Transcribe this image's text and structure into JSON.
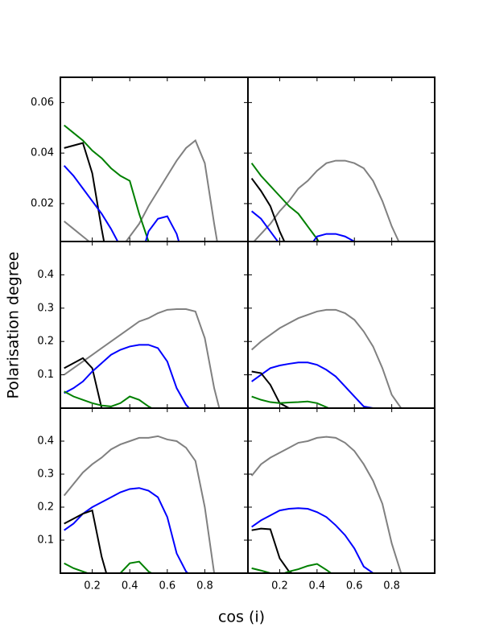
{
  "xlabel": "cos (i)",
  "ylabel": "Polarisation degree",
  "chart_data": [
    {
      "type": "line",
      "xtick_labels": false,
      "ytick_labels": true,
      "x": [
        0.05,
        0.1,
        0.15,
        0.2,
        0.25,
        0.3,
        0.35,
        0.4,
        0.45,
        0.5,
        0.55,
        0.6,
        0.65,
        0.7,
        0.75,
        0.8,
        0.85,
        0.9
      ],
      "xlim": [
        0.03,
        1.03
      ],
      "ylim": [
        0.005,
        0.07
      ],
      "xticks": [
        0.2,
        0.4,
        0.6,
        0.8
      ],
      "yticks": [
        0.02,
        0.04,
        0.06
      ],
      "series": [
        {
          "color": "#808080",
          "values": [
            0.013,
            0.01,
            0.007,
            0.004,
            0.001,
            -0.002,
            0.002,
            0.007,
            0.012,
            0.019,
            0.025,
            0.031,
            0.037,
            0.042,
            0.045,
            0.036,
            0.012,
            -0.01
          ]
        },
        {
          "color": "#008000",
          "values": [
            0.051,
            0.048,
            0.045,
            0.041,
            0.038,
            0.034,
            0.031,
            0.029,
            0.016,
            0.005,
            -0.005,
            null,
            null,
            null,
            null,
            null,
            null,
            null
          ]
        },
        {
          "color": "#000000",
          "values": [
            0.042,
            0.043,
            0.044,
            0.032,
            0.01,
            -0.01,
            null,
            null,
            null,
            null,
            null,
            null,
            null,
            null,
            null,
            null,
            null,
            null
          ]
        },
        {
          "color": "#0000ff",
          "values": [
            0.035,
            0.031,
            0.026,
            0.021,
            0.016,
            0.01,
            0.003,
            -0.004,
            -0.004,
            0.009,
            0.014,
            0.015,
            0.008,
            -0.005,
            null,
            null,
            null,
            null
          ]
        }
      ]
    },
    {
      "type": "line",
      "xtick_labels": false,
      "ytick_labels": false,
      "x": [
        0.05,
        0.1,
        0.15,
        0.2,
        0.25,
        0.3,
        0.35,
        0.4,
        0.45,
        0.5,
        0.55,
        0.6,
        0.65,
        0.7,
        0.75,
        0.8,
        0.85,
        0.9
      ],
      "xlim": [
        0.03,
        1.03
      ],
      "ylim": [
        0.005,
        0.07
      ],
      "xticks": [
        0.2,
        0.4,
        0.6,
        0.8
      ],
      "yticks": [
        0.02,
        0.04,
        0.06
      ],
      "series": [
        {
          "color": "#808080",
          "values": [
            0.004,
            0.008,
            0.012,
            0.017,
            0.021,
            0.026,
            0.029,
            0.033,
            0.036,
            0.037,
            0.037,
            0.036,
            0.034,
            0.029,
            0.021,
            0.011,
            0.003,
            -0.005
          ]
        },
        {
          "color": "#008000",
          "values": [
            0.036,
            0.031,
            0.027,
            0.023,
            0.019,
            0.016,
            0.011,
            0.006,
            0.0,
            null,
            null,
            null,
            null,
            null,
            null,
            null,
            null,
            null
          ]
        },
        {
          "color": "#000000",
          "values": [
            0.03,
            0.025,
            0.019,
            0.009,
            0.001,
            null,
            null,
            null,
            null,
            null,
            null,
            null,
            null,
            null,
            null,
            null,
            null,
            null
          ]
        },
        {
          "color": "#0000ff",
          "values": [
            0.017,
            0.014,
            0.009,
            0.004,
            -0.001,
            -0.004,
            0.002,
            0.007,
            0.008,
            0.008,
            0.007,
            0.005,
            0.003,
            null,
            null,
            null,
            null,
            null
          ]
        }
      ]
    },
    {
      "type": "line",
      "xtick_labels": false,
      "ytick_labels": true,
      "x": [
        0.05,
        0.1,
        0.15,
        0.2,
        0.25,
        0.3,
        0.35,
        0.4,
        0.45,
        0.5,
        0.55,
        0.6,
        0.65,
        0.7,
        0.75,
        0.8,
        0.85,
        0.9
      ],
      "xlim": [
        0.03,
        1.03
      ],
      "ylim": [
        0,
        0.5
      ],
      "xticks": [
        0.2,
        0.4,
        0.6,
        0.8
      ],
      "yticks": [
        0.1,
        0.2,
        0.3,
        0.4
      ],
      "series": [
        {
          "color": "#808080",
          "values": [
            0.1,
            0.12,
            0.14,
            0.16,
            0.18,
            0.2,
            0.22,
            0.24,
            0.26,
            0.27,
            0.285,
            0.295,
            0.297,
            0.297,
            0.29,
            0.21,
            0.06,
            -0.05
          ]
        },
        {
          "color": "#000000",
          "values": [
            0.12,
            0.135,
            0.15,
            0.12,
            0.0,
            null,
            null,
            null,
            null,
            null,
            null,
            null,
            null,
            null,
            null,
            null,
            null,
            null
          ]
        },
        {
          "color": "#0000ff",
          "values": [
            0.045,
            0.06,
            0.08,
            0.11,
            0.135,
            0.16,
            0.175,
            0.185,
            0.19,
            0.19,
            0.18,
            0.14,
            0.06,
            0.01,
            -0.02,
            null,
            null,
            null
          ]
        },
        {
          "color": "#008000",
          "values": [
            0.05,
            0.035,
            0.025,
            0.015,
            0.008,
            0.005,
            0.015,
            0.035,
            0.025,
            0.005,
            -0.01,
            null,
            null,
            null,
            null,
            null,
            null,
            null
          ]
        }
      ]
    },
    {
      "type": "line",
      "xtick_labels": false,
      "ytick_labels": false,
      "x": [
        0.05,
        0.1,
        0.15,
        0.2,
        0.25,
        0.3,
        0.35,
        0.4,
        0.45,
        0.5,
        0.55,
        0.6,
        0.65,
        0.7,
        0.75,
        0.8,
        0.85,
        0.9
      ],
      "xlim": [
        0.03,
        1.03
      ],
      "ylim": [
        0,
        0.5
      ],
      "xticks": [
        0.2,
        0.4,
        0.6,
        0.8
      ],
      "yticks": [
        0.1,
        0.2,
        0.3,
        0.4
      ],
      "series": [
        {
          "color": "#808080",
          "values": [
            0.175,
            0.2,
            0.22,
            0.24,
            0.255,
            0.27,
            0.28,
            0.29,
            0.295,
            0.295,
            0.285,
            0.265,
            0.23,
            0.185,
            0.12,
            0.04,
            0.0,
            null
          ]
        },
        {
          "color": "#0000ff",
          "values": [
            0.08,
            0.1,
            0.12,
            0.128,
            0.133,
            0.137,
            0.137,
            0.13,
            0.115,
            0.095,
            0.065,
            0.035,
            0.005,
            0.0,
            null,
            null,
            null,
            null
          ]
        },
        {
          "color": "#000000",
          "values": [
            0.11,
            0.105,
            0.07,
            0.015,
            0.0,
            null,
            null,
            null,
            null,
            null,
            null,
            null,
            null,
            null,
            null,
            null,
            null,
            null
          ]
        },
        {
          "color": "#008000",
          "values": [
            0.035,
            0.025,
            0.018,
            0.015,
            0.017,
            0.018,
            0.02,
            0.015,
            0.003,
            -0.01,
            null,
            null,
            null,
            null,
            null,
            null,
            null,
            null
          ]
        }
      ]
    },
    {
      "type": "line",
      "xtick_labels": true,
      "ytick_labels": true,
      "x": [
        0.05,
        0.1,
        0.15,
        0.2,
        0.25,
        0.3,
        0.35,
        0.4,
        0.45,
        0.5,
        0.55,
        0.6,
        0.65,
        0.7,
        0.75,
        0.8,
        0.85,
        0.9
      ],
      "xlim": [
        0.03,
        1.03
      ],
      "ylim": [
        0,
        0.5
      ],
      "xticks": [
        0.2,
        0.4,
        0.6,
        0.8
      ],
      "yticks": [
        0.1,
        0.2,
        0.3,
        0.4
      ],
      "series": [
        {
          "color": "#808080",
          "values": [
            0.235,
            0.27,
            0.305,
            0.33,
            0.35,
            0.375,
            0.39,
            0.4,
            0.41,
            0.41,
            0.415,
            0.405,
            0.4,
            0.38,
            0.34,
            0.2,
            0.0,
            null
          ]
        },
        {
          "color": "#0000ff",
          "values": [
            0.13,
            0.15,
            0.18,
            0.2,
            0.215,
            0.23,
            0.245,
            0.255,
            0.258,
            0.25,
            0.23,
            0.17,
            0.06,
            0.005,
            -0.02,
            null,
            null,
            null
          ]
        },
        {
          "color": "#000000",
          "values": [
            0.15,
            0.165,
            0.18,
            0.19,
            0.05,
            -0.05,
            null,
            null,
            null,
            null,
            null,
            null,
            null,
            null,
            null,
            null,
            null,
            null
          ]
        },
        {
          "color": "#008000",
          "values": [
            0.03,
            0.015,
            0.005,
            -0.005,
            -0.01,
            -0.01,
            0.0,
            0.03,
            0.035,
            0.005,
            -0.01,
            null,
            null,
            null,
            null,
            null,
            null,
            null
          ]
        }
      ]
    },
    {
      "type": "line",
      "xtick_labels": true,
      "ytick_labels": false,
      "x": [
        0.05,
        0.1,
        0.15,
        0.2,
        0.25,
        0.3,
        0.35,
        0.4,
        0.45,
        0.5,
        0.55,
        0.6,
        0.65,
        0.7,
        0.75,
        0.8,
        0.85,
        0.9
      ],
      "xlim": [
        0.03,
        1.03
      ],
      "ylim": [
        0,
        0.5
      ],
      "xticks": [
        0.2,
        0.4,
        0.6,
        0.8
      ],
      "yticks": [
        0.1,
        0.2,
        0.3,
        0.4
      ],
      "series": [
        {
          "color": "#808080",
          "values": [
            0.295,
            0.33,
            0.35,
            0.365,
            0.38,
            0.395,
            0.4,
            0.41,
            0.413,
            0.41,
            0.395,
            0.37,
            0.33,
            0.28,
            0.21,
            0.09,
            0.0,
            null
          ]
        },
        {
          "color": "#0000ff",
          "values": [
            0.14,
            0.16,
            0.175,
            0.19,
            0.195,
            0.197,
            0.195,
            0.185,
            0.17,
            0.145,
            0.115,
            0.075,
            0.02,
            0.0,
            null,
            null,
            null,
            null
          ]
        },
        {
          "color": "#000000",
          "values": [
            0.13,
            0.135,
            0.133,
            0.045,
            0.005,
            -0.01,
            null,
            null,
            null,
            null,
            null,
            null,
            null,
            null,
            null,
            null,
            null,
            null
          ]
        },
        {
          "color": "#008000",
          "values": [
            0.015,
            0.008,
            0.0,
            -0.005,
            0.005,
            0.012,
            0.022,
            0.028,
            0.01,
            -0.01,
            null,
            null,
            null,
            null,
            null,
            null,
            null,
            null
          ]
        }
      ]
    }
  ]
}
